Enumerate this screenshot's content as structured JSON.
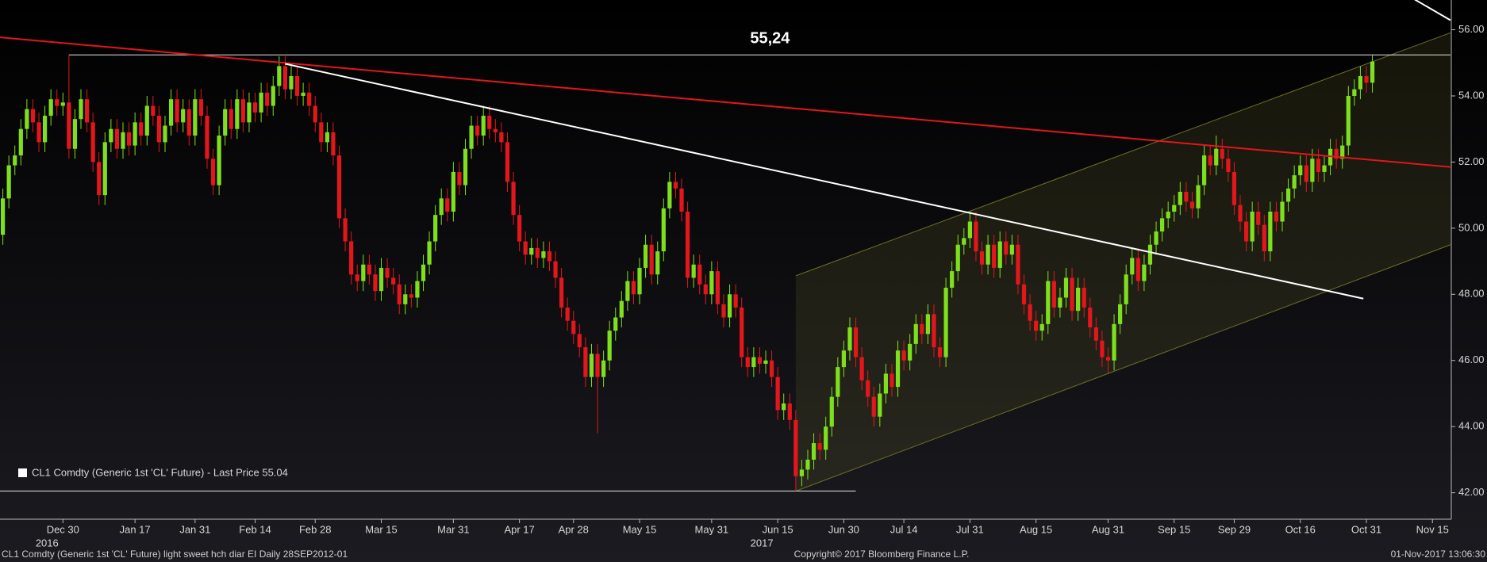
{
  "chart_data": {
    "type": "candlestick",
    "legend": "CL1 Comdty (Generic 1st 'CL' Future) - Last Price 55.04",
    "footer_left": "CL1 Comdty (Generic 1st 'CL' Future) light sweet hch diar EI  Daily 28SEP2012-01",
    "footer_center": "Copyright© 2017 Bloomberg Finance L.P.",
    "footer_right": "01-Nov-2017 13:06:30",
    "up_color": "#7ee01c",
    "down_color": "#e3161b",
    "year_labels": [
      "2016",
      "2017"
    ],
    "categories": [
      null,
      null,
      null,
      null,
      null,
      null,
      null,
      null,
      null,
      null,
      "Dec 30",
      null,
      null,
      null,
      null,
      null,
      null,
      null,
      null,
      null,
      null,
      null,
      "Jan 17",
      null,
      null,
      null,
      null,
      null,
      null,
      null,
      null,
      null,
      "Jan 31",
      null,
      null,
      null,
      null,
      null,
      null,
      null,
      null,
      null,
      "Feb 14",
      null,
      null,
      null,
      null,
      null,
      null,
      null,
      null,
      null,
      "Feb 28",
      null,
      null,
      null,
      null,
      null,
      null,
      null,
      null,
      null,
      null,
      "Mar 15",
      null,
      null,
      null,
      null,
      null,
      null,
      null,
      null,
      null,
      null,
      null,
      "Mar 31",
      null,
      null,
      null,
      null,
      null,
      null,
      null,
      null,
      null,
      null,
      "Apr 17",
      null,
      null,
      null,
      null,
      null,
      null,
      null,
      null,
      "Apr 28",
      null,
      null,
      null,
      null,
      null,
      null,
      null,
      null,
      null,
      null,
      "May 15",
      null,
      null,
      null,
      null,
      null,
      null,
      null,
      null,
      null,
      null,
      null,
      "May 31",
      null,
      null,
      null,
      null,
      null,
      null,
      null,
      null,
      null,
      null,
      "Jun 15",
      null,
      null,
      null,
      null,
      null,
      null,
      null,
      null,
      null,
      null,
      "Jun 30",
      null,
      null,
      null,
      null,
      null,
      null,
      null,
      null,
      null,
      "Jul 14",
      null,
      null,
      null,
      null,
      null,
      null,
      null,
      null,
      null,
      null,
      "Jul 31",
      null,
      null,
      null,
      null,
      null,
      null,
      null,
      null,
      null,
      null,
      "Aug 15",
      null,
      null,
      null,
      null,
      null,
      null,
      null,
      null,
      null,
      null,
      null,
      "Aug 31",
      null,
      null,
      null,
      null,
      null,
      null,
      null,
      null,
      null,
      null,
      "Sep 15",
      null,
      null,
      null,
      null,
      null,
      null,
      null,
      null,
      null,
      "Sep 29",
      null,
      null,
      null,
      null,
      null,
      null,
      null,
      null,
      null,
      null,
      "Oct 16",
      null,
      null,
      null,
      null,
      null,
      null,
      null,
      null,
      null,
      null,
      "Oct 31",
      null,
      null,
      null,
      null,
      null,
      null,
      null,
      null,
      null,
      null,
      "Nov 15",
      null,
      null,
      null
    ],
    "open": [
      49.8,
      50.9,
      51.9,
      52.2,
      53.0,
      53.6,
      53.2,
      52.6,
      53.4,
      53.9,
      53.7,
      53.8,
      52.4,
      53.3,
      53.9,
      53.2,
      52.0,
      51.0,
      52.6,
      53.0,
      52.4,
      52.9,
      52.5,
      53.2,
      52.8,
      53.7,
      53.4,
      52.6,
      53.1,
      53.9,
      53.2,
      53.6,
      52.8,
      53.9,
      53.4,
      52.1,
      51.3,
      52.8,
      53.6,
      53.0,
      53.9,
      53.2,
      53.8,
      53.5,
      54.1,
      53.7,
      54.3,
      54.9,
      54.2,
      54.6,
      54.0,
      54.1,
      53.7,
      53.2,
      52.6,
      52.9,
      52.2,
      50.3,
      49.6,
      48.6,
      48.4,
      48.9,
      48.6,
      48.1,
      48.8,
      48.5,
      48.3,
      47.7,
      48.0,
      47.9,
      48.4,
      48.9,
      49.6,
      50.4,
      50.9,
      50.5,
      51.7,
      51.3,
      52.4,
      53.1,
      52.8,
      53.4,
      53.0,
      52.9,
      52.6,
      51.4,
      50.4,
      49.6,
      49.2,
      49.4,
      49.1,
      49.3,
      49.0,
      48.5,
      47.6,
      47.2,
      46.8,
      46.4,
      45.5,
      46.2,
      45.5,
      46.0,
      46.9,
      47.3,
      47.8,
      48.4,
      48.0,
      48.8,
      49.5,
      48.6,
      49.3,
      50.6,
      51.4,
      51.2,
      50.5,
      48.5,
      48.9,
      48.3,
      48.0,
      48.7,
      47.7,
      47.3,
      48.0,
      47.6,
      46.1,
      45.8,
      46.1,
      45.9,
      46.0,
      45.5,
      44.5,
      44.7,
      44.2,
      42.5,
      42.7,
      43.0,
      43.5,
      43.3,
      44.0,
      44.9,
      45.8,
      46.3,
      47.0,
      46.1,
      45.4,
      44.9,
      44.3,
      45.0,
      45.6,
      45.2,
      46.3,
      46.0,
      46.5,
      47.1,
      46.8,
      47.4,
      46.4,
      46.1,
      48.2,
      48.7,
      49.5,
      49.7,
      50.2,
      49.3,
      48.9,
      49.5,
      48.8,
      49.6,
      49.2,
      49.5,
      48.3,
      47.7,
      47.2,
      46.9,
      47.1,
      48.4,
      47.6,
      47.9,
      48.5,
      47.5,
      48.2,
      47.6,
      47.0,
      46.6,
      46.1,
      46.0,
      47.1,
      47.7,
      48.6,
      49.1,
      48.4,
      48.9,
      49.5,
      49.9,
      50.3,
      50.5,
      50.7,
      51.1,
      50.8,
      50.6,
      51.3,
      52.2,
      51.9,
      52.4,
      52.1,
      51.7,
      50.7,
      50.2,
      49.6,
      50.5,
      50.1,
      49.3,
      50.5,
      50.2,
      50.8,
      51.2,
      51.6,
      51.9,
      51.4,
      52.1,
      51.7,
      51.9,
      52.4,
      52.1,
      52.5,
      54.0,
      54.2,
      54.6,
      54.4,
      null,
      null,
      null,
      null,
      null,
      null,
      null,
      null,
      null,
      null,
      null,
      null,
      null
    ],
    "high": [
      51.2,
      52.2,
      52.5,
      53.3,
      53.9,
      53.9,
      53.5,
      53.7,
      54.2,
      54.2,
      54.1,
      55.24,
      53.6,
      54.2,
      54.2,
      53.5,
      52.3,
      52.9,
      53.3,
      53.3,
      53.2,
      53.2,
      53.5,
      53.5,
      54.0,
      54.0,
      53.7,
      53.4,
      54.2,
      54.2,
      53.9,
      53.9,
      54.2,
      54.2,
      53.7,
      52.4,
      53.1,
      53.9,
      53.9,
      54.2,
      54.2,
      54.1,
      54.1,
      54.4,
      54.4,
      54.6,
      55.2,
      55.2,
      54.9,
      54.9,
      54.4,
      54.4,
      54.0,
      53.5,
      53.2,
      53.2,
      52.5,
      50.6,
      49.9,
      48.9,
      49.2,
      49.2,
      48.9,
      49.1,
      49.1,
      48.8,
      48.6,
      48.3,
      48.3,
      48.7,
      49.2,
      49.9,
      50.7,
      51.2,
      51.2,
      52.0,
      52.0,
      52.7,
      53.4,
      53.4,
      53.7,
      53.7,
      53.3,
      53.2,
      52.9,
      51.7,
      50.7,
      49.9,
      49.7,
      49.7,
      49.6,
      49.6,
      49.3,
      48.8,
      47.9,
      47.5,
      47.1,
      46.7,
      46.5,
      46.5,
      46.3,
      47.2,
      47.6,
      48.1,
      48.7,
      48.7,
      49.1,
      49.8,
      49.8,
      49.6,
      50.9,
      51.7,
      51.7,
      51.5,
      50.8,
      49.2,
      49.2,
      48.6,
      49.0,
      49.0,
      48.0,
      48.3,
      48.3,
      47.9,
      46.4,
      46.4,
      46.4,
      46.3,
      46.3,
      45.8,
      45.0,
      45.0,
      44.5,
      43.0,
      43.3,
      43.8,
      43.8,
      44.3,
      45.2,
      46.1,
      46.6,
      47.3,
      47.3,
      46.4,
      45.7,
      45.2,
      45.3,
      45.9,
      45.9,
      46.6,
      46.6,
      46.8,
      47.4,
      47.4,
      47.7,
      47.7,
      46.7,
      48.5,
      49.0,
      49.8,
      50.0,
      50.5,
      50.5,
      49.6,
      49.8,
      49.8,
      49.9,
      49.9,
      49.8,
      49.8,
      48.6,
      48.0,
      47.5,
      47.4,
      48.7,
      48.7,
      48.2,
      48.8,
      48.8,
      48.5,
      48.5,
      47.9,
      47.3,
      46.9,
      46.4,
      47.4,
      48.0,
      48.9,
      49.4,
      49.4,
      49.2,
      49.8,
      50.2,
      50.6,
      50.8,
      51.0,
      51.4,
      51.4,
      51.1,
      51.6,
      52.5,
      52.5,
      52.8,
      52.7,
      52.4,
      52.0,
      51.0,
      50.5,
      50.8,
      50.8,
      50.4,
      50.8,
      50.8,
      51.1,
      51.5,
      51.9,
      52.2,
      52.2,
      52.4,
      52.4,
      52.2,
      52.7,
      52.7,
      52.8,
      54.3,
      54.5,
      54.9,
      54.9,
      55.24,
      null,
      null,
      null,
      null,
      null,
      null,
      null,
      null,
      null,
      null,
      null,
      null,
      null
    ],
    "low": [
      49.5,
      50.6,
      51.6,
      51.9,
      52.7,
      52.9,
      52.3,
      52.3,
      53.1,
      53.4,
      53.4,
      52.1,
      52.1,
      53.0,
      52.9,
      51.7,
      50.7,
      50.7,
      52.3,
      52.1,
      52.1,
      52.2,
      52.2,
      52.5,
      52.5,
      53.1,
      52.3,
      52.3,
      52.8,
      52.9,
      52.9,
      52.5,
      52.5,
      53.1,
      51.8,
      51.0,
      51.0,
      52.5,
      52.7,
      52.7,
      52.9,
      52.9,
      53.2,
      53.2,
      53.4,
      53.4,
      54.0,
      53.9,
      53.9,
      53.7,
      53.7,
      53.4,
      52.9,
      52.3,
      52.3,
      51.9,
      50.0,
      49.3,
      48.3,
      48.1,
      48.1,
      48.3,
      47.8,
      47.8,
      48.2,
      48.0,
      47.4,
      47.4,
      47.6,
      47.6,
      48.1,
      48.6,
      49.3,
      50.1,
      50.2,
      50.2,
      51.0,
      51.0,
      52.1,
      52.5,
      52.5,
      52.7,
      52.6,
      52.3,
      51.1,
      50.1,
      49.3,
      48.9,
      48.9,
      48.8,
      48.8,
      48.7,
      48.2,
      47.3,
      46.9,
      46.5,
      46.1,
      45.2,
      45.2,
      43.8,
      45.2,
      45.7,
      46.6,
      47.0,
      47.5,
      47.7,
      47.7,
      48.5,
      48.3,
      48.3,
      49.0,
      50.3,
      50.9,
      50.2,
      48.2,
      48.2,
      48.0,
      47.7,
      47.7,
      47.4,
      47.0,
      47.0,
      47.3,
      45.8,
      45.5,
      45.5,
      45.6,
      45.6,
      45.2,
      44.2,
      44.2,
      43.9,
      42.05,
      42.2,
      42.4,
      42.7,
      43.0,
      43.0,
      43.7,
      44.6,
      45.5,
      46.0,
      45.8,
      45.1,
      44.6,
      44.0,
      44.0,
      44.7,
      44.9,
      44.9,
      45.7,
      45.7,
      46.2,
      46.5,
      46.5,
      46.1,
      45.8,
      45.8,
      47.9,
      48.4,
      49.2,
      49.4,
      49.0,
      48.6,
      48.6,
      48.5,
      48.5,
      48.9,
      48.9,
      48.0,
      47.4,
      46.9,
      46.6,
      46.6,
      46.8,
      47.3,
      47.3,
      47.6,
      47.2,
      47.2,
      47.3,
      46.7,
      46.3,
      45.8,
      45.6,
      45.7,
      46.8,
      47.4,
      48.3,
      48.1,
      48.1,
      48.6,
      49.2,
      49.6,
      50.0,
      50.2,
      50.4,
      50.5,
      50.3,
      50.3,
      51.0,
      51.6,
      51.6,
      51.8,
      51.4,
      50.4,
      49.9,
      49.3,
      49.3,
      49.8,
      49.0,
      49.0,
      49.9,
      49.9,
      50.5,
      50.9,
      51.3,
      51.1,
      51.1,
      51.4,
      51.4,
      51.6,
      51.8,
      51.8,
      52.2,
      53.7,
      53.9,
      54.1,
      54.1,
      null,
      null,
      null,
      null,
      null,
      null,
      null,
      null,
      null,
      null,
      null,
      null,
      null
    ],
    "close": [
      50.9,
      51.9,
      52.2,
      53.0,
      53.6,
      53.2,
      52.6,
      53.4,
      53.9,
      53.7,
      53.8,
      52.4,
      53.3,
      53.9,
      53.2,
      52.0,
      51.0,
      52.6,
      53.0,
      52.4,
      52.9,
      52.5,
      53.2,
      52.8,
      53.7,
      53.4,
      52.6,
      53.1,
      53.9,
      53.2,
      53.6,
      52.8,
      53.9,
      53.4,
      52.1,
      51.3,
      52.8,
      53.6,
      53.0,
      53.9,
      53.2,
      53.8,
      53.5,
      54.1,
      53.7,
      54.3,
      54.9,
      54.2,
      54.6,
      54.0,
      54.1,
      53.7,
      53.2,
      52.6,
      52.9,
      52.2,
      50.3,
      49.6,
      48.6,
      48.4,
      48.9,
      48.6,
      48.1,
      48.8,
      48.5,
      48.3,
      47.7,
      48.0,
      47.9,
      48.4,
      48.9,
      49.6,
      50.4,
      50.9,
      50.5,
      51.7,
      51.3,
      52.4,
      53.1,
      52.8,
      53.4,
      53.0,
      52.9,
      52.6,
      51.4,
      50.4,
      49.6,
      49.2,
      49.4,
      49.1,
      49.3,
      49.0,
      48.5,
      47.6,
      47.2,
      46.8,
      46.4,
      45.5,
      46.2,
      45.5,
      46.0,
      46.9,
      47.3,
      47.8,
      48.4,
      48.0,
      48.8,
      49.5,
      48.6,
      49.3,
      50.6,
      51.4,
      51.2,
      50.5,
      48.5,
      48.9,
      48.3,
      48.0,
      48.7,
      47.7,
      47.3,
      48.0,
      47.6,
      46.1,
      45.8,
      46.1,
      45.9,
      46.0,
      45.5,
      44.5,
      44.7,
      44.2,
      42.5,
      42.7,
      43.0,
      43.5,
      43.3,
      44.0,
      44.9,
      45.8,
      46.3,
      47.0,
      46.1,
      45.4,
      44.9,
      44.3,
      45.0,
      45.6,
      45.2,
      46.3,
      46.0,
      46.5,
      47.1,
      46.8,
      47.4,
      46.4,
      46.1,
      48.2,
      48.7,
      49.5,
      49.7,
      50.2,
      49.3,
      48.9,
      49.5,
      48.8,
      49.6,
      49.2,
      49.5,
      48.3,
      47.7,
      47.2,
      46.9,
      47.1,
      48.4,
      47.6,
      47.9,
      48.5,
      47.5,
      48.2,
      47.6,
      47.0,
      46.6,
      46.1,
      46.0,
      47.1,
      47.7,
      48.6,
      49.1,
      48.4,
      48.9,
      49.5,
      49.9,
      50.3,
      50.5,
      50.7,
      51.1,
      50.8,
      50.6,
      51.3,
      52.2,
      51.9,
      52.4,
      52.1,
      51.7,
      50.7,
      50.2,
      49.6,
      50.5,
      50.1,
      49.3,
      50.5,
      50.2,
      50.8,
      51.2,
      51.6,
      51.9,
      51.4,
      52.1,
      51.7,
      51.9,
      52.4,
      52.1,
      52.5,
      54.0,
      54.2,
      54.6,
      54.4,
      55.04,
      null,
      null,
      null,
      null,
      null,
      null,
      null,
      null,
      null,
      null,
      null,
      null,
      null
    ],
    "ylim": [
      41.2,
      56.9
    ],
    "yticks": [
      {
        "value": 42,
        "label": "42.00"
      },
      {
        "value": 44,
        "label": "44.00"
      },
      {
        "value": 46,
        "label": "46.00"
      },
      {
        "value": 48,
        "label": "48.00"
      },
      {
        "value": 50,
        "label": "50.00"
      },
      {
        "value": 52,
        "label": "52.00"
      },
      {
        "value": 54,
        "label": "54.00"
      },
      {
        "value": 56,
        "label": "56.00"
      }
    ],
    "channel": {
      "color": "#6f6f2a",
      "upper": [
        [
          132,
          48.56
        ],
        [
          241,
          55.91
        ]
      ],
      "lower": [
        [
          132,
          42.05
        ],
        [
          241,
          49.5
        ]
      ]
    },
    "lines": [
      {
        "color": "#e3161b",
        "points": [
          [
            -0.5,
            55.77
          ],
          [
            241,
            51.85
          ]
        ]
      },
      {
        "color": "#ffffff",
        "points": [
          [
            47,
            54.97
          ],
          [
            226.5,
            47.87
          ]
        ]
      },
      {
        "color": "#ffffff",
        "points": [
          [
            235,
            56.92
          ],
          [
            241,
            56.29
          ]
        ]
      }
    ],
    "levels": [
      {
        "value": 55.24,
        "label": "55,24",
        "from": 11,
        "to": 241
      },
      {
        "value": 42.05,
        "from": -0.5,
        "to": 142
      }
    ]
  }
}
